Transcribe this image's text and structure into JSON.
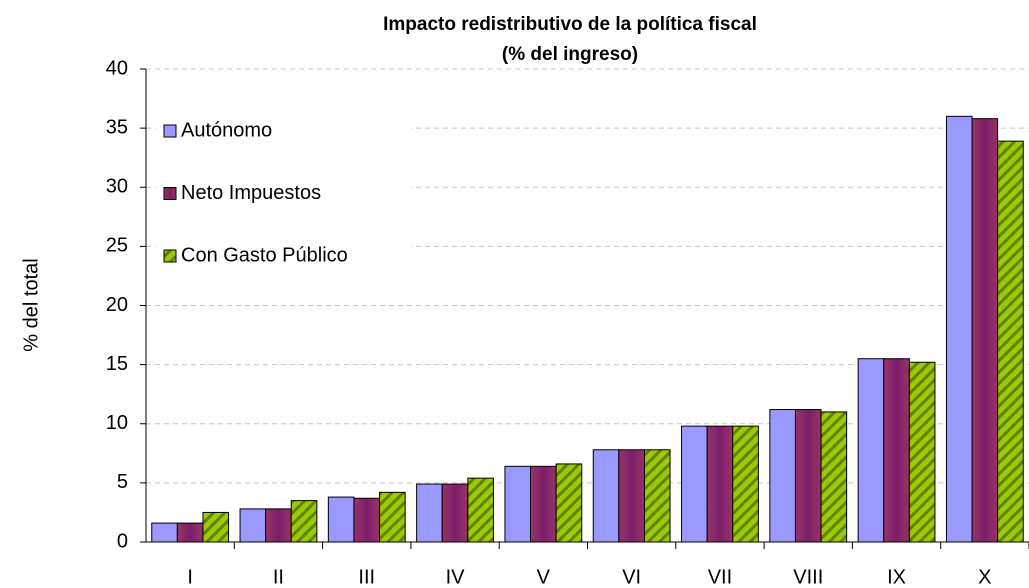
{
  "chart_data": {
    "type": "bar",
    "title": "Impacto redistributivo de la política fiscal",
    "subtitle": "(% del ingreso)",
    "y_label": "% del total",
    "categories": [
      "I",
      "II",
      "III",
      "IV",
      "V",
      "VI",
      "VII",
      "VIII",
      "IX",
      "X"
    ],
    "series": [
      {
        "name": "Autónomo",
        "color": "#9999ff",
        "values": [
          1.6,
          2.8,
          3.8,
          4.9,
          6.4,
          7.8,
          9.8,
          11.2,
          15.5,
          36.0
        ]
      },
      {
        "name": "Neto Impuestos",
        "color": "#993366",
        "values": [
          1.6,
          2.8,
          3.7,
          4.9,
          6.4,
          7.8,
          9.8,
          11.2,
          15.5,
          35.8
        ]
      },
      {
        "name": "Con Gasto Público",
        "color": "#99cc00",
        "values": [
          2.5,
          3.5,
          4.2,
          5.4,
          6.6,
          7.8,
          9.8,
          11.0,
          15.2,
          33.9
        ]
      }
    ],
    "ylim": [
      0,
      40
    ],
    "yticks": [
      0,
      5,
      10,
      15,
      20,
      25,
      30,
      35,
      40
    ],
    "grid": true,
    "legend": "upper left"
  }
}
